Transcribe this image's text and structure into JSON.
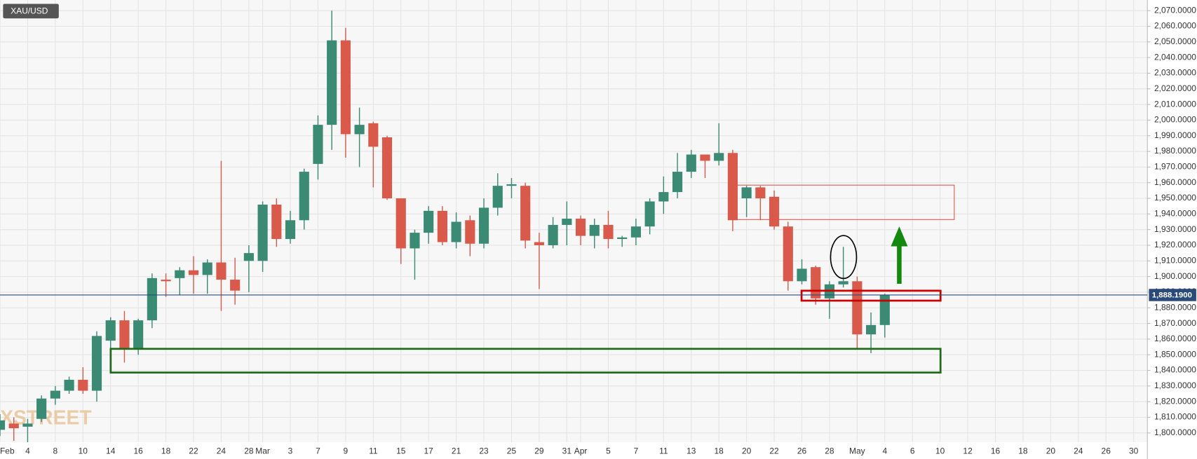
{
  "chart_data": {
    "type": "candlestick",
    "symbol": "XAU/USD",
    "watermark": "FXSTREET",
    "up_color": "#3a8a74",
    "down_color": "#d95a4b",
    "grid": true,
    "ylim": [
      1794.1,
      2076.8
    ],
    "yticks": [
      {
        "value": 1800,
        "label": "1,800.0000"
      },
      {
        "value": 1810,
        "label": "1,810.0000"
      },
      {
        "value": 1820,
        "label": "1,820.0000"
      },
      {
        "value": 1830,
        "label": "1,830.0000"
      },
      {
        "value": 1840,
        "label": "1,840.0000"
      },
      {
        "value": 1850,
        "label": "1,850.0000"
      },
      {
        "value": 1860,
        "label": "1,860.0000"
      },
      {
        "value": 1870,
        "label": "1,870.0000"
      },
      {
        "value": 1880,
        "label": "1,880.0000"
      },
      {
        "value": 1890,
        "label": "1,890.0000"
      },
      {
        "value": 1900,
        "label": "1,900.0000"
      },
      {
        "value": 1910,
        "label": "1,910.0000"
      },
      {
        "value": 1920,
        "label": "1,920.0000"
      },
      {
        "value": 1930,
        "label": "1,930.0000"
      },
      {
        "value": 1940,
        "label": "1,940.0000"
      },
      {
        "value": 1950,
        "label": "1,950.0000"
      },
      {
        "value": 1960,
        "label": "1,960.0000"
      },
      {
        "value": 1970,
        "label": "1,970.0000"
      },
      {
        "value": 1980,
        "label": "1,980.0000"
      },
      {
        "value": 1990,
        "label": "1,990.0000"
      },
      {
        "value": 2000,
        "label": "2,000.0000"
      },
      {
        "value": 2010,
        "label": "2,010.0000"
      },
      {
        "value": 2020,
        "label": "2,020.0000"
      },
      {
        "value": 2030,
        "label": "2,030.0000"
      },
      {
        "value": 2040,
        "label": "2,040.0000"
      },
      {
        "value": 2050,
        "label": "2,050.0000"
      },
      {
        "value": 2060,
        "label": "2,060.0000"
      },
      {
        "value": 2070,
        "label": "2,070.0000"
      }
    ],
    "last_price": {
      "value": 1888.19,
      "label": "1,888.1900"
    },
    "categories": [
      "Feb",
      null,
      "4",
      null,
      "8",
      null,
      "10",
      null,
      "14",
      null,
      "16",
      null,
      "18",
      null,
      "22",
      null,
      "24",
      null,
      "28",
      "Mar",
      null,
      "3",
      null,
      "7",
      null,
      "9",
      null,
      "11",
      null,
      "15",
      null,
      "17",
      null,
      "21",
      null,
      "23",
      null,
      "25",
      null,
      "29",
      null,
      "31",
      "Apr",
      null,
      "5",
      null,
      "7",
      null,
      "11",
      null,
      "13",
      null,
      "18",
      null,
      "20",
      null,
      "22",
      null,
      "26",
      null,
      "28",
      null,
      "May",
      null,
      "4",
      null,
      "6",
      null,
      "10",
      null,
      "12",
      null,
      "16",
      null,
      "18",
      null,
      "20",
      null,
      "24",
      null,
      "26",
      null,
      "30"
    ],
    "open": [
      1802,
      1806,
      1804,
      1809,
      1822,
      1827,
      1834,
      1827,
      1859,
      1872,
      1854,
      1872,
      1898,
      1899,
      1904,
      1901,
      1909,
      1898,
      1910,
      1910,
      1946,
      1924,
      1936,
      1972,
      1997,
      2051,
      1991,
      1998,
      1989,
      1950,
      1918,
      1928,
      1942,
      1922,
      1936,
      1921,
      1944,
      1958,
      1958,
      1922,
      1920,
      1933,
      1937,
      1926,
      1933,
      1924,
      1925,
      1932,
      1948,
      1954,
      1967,
      1978,
      1974,
      1979,
      1950,
      1957,
      1951,
      1932,
      1897,
      1906,
      1886,
      1895,
      1897,
      1863,
      1869,
      null,
      null,
      null,
      null,
      null,
      null,
      null,
      null,
      null,
      null,
      null,
      null,
      null,
      null,
      null,
      null,
      null,
      null
    ],
    "high": [
      1812,
      1810,
      1809,
      1824,
      1830,
      1836,
      1842,
      1865,
      1874,
      1878,
      1873,
      1902,
      1902,
      1906,
      1913,
      1911,
      1974,
      1912,
      1920,
      1948,
      1950,
      1942,
      1969,
      2003,
      2070,
      2059,
      2008,
      1999,
      1990,
      1950,
      1930,
      1945,
      1945,
      1941,
      1939,
      1950,
      1966,
      1963,
      1960,
      1928,
      1938,
      1948,
      1939,
      1937,
      1942,
      1926,
      1937,
      1950,
      1964,
      1979,
      1981,
      1978,
      1998,
      1981,
      1958,
      1958,
      1955,
      1935,
      1911,
      1907,
      1897,
      1919,
      1900,
      1877,
      1889,
      null,
      null,
      null,
      null,
      null,
      null,
      null,
      null,
      null,
      null,
      null,
      null,
      null,
      null,
      null,
      null,
      null,
      null
    ],
    "low": [
      1798,
      1795,
      1794,
      1807,
      1818,
      1825,
      1825,
      1820,
      1853,
      1845,
      1850,
      1867,
      1887,
      1888,
      1889,
      1889,
      1878,
      1882,
      1890,
      1903,
      1919,
      1921,
      1930,
      1962,
      1981,
      1976,
      1970,
      1957,
      1949,
      1908,
      1898,
      1921,
      1920,
      1918,
      1913,
      1918,
      1939,
      1950,
      1918,
      1892,
      1918,
      1920,
      1920,
      1918,
      1918,
      1919,
      1920,
      1927,
      1940,
      1950,
      1963,
      1963,
      1971,
      1929,
      1938,
      1936,
      1930,
      1891,
      1895,
      1882,
      1873,
      1893,
      1854,
      1851,
      1861,
      null,
      null,
      null,
      null,
      null,
      null,
      null,
      null,
      null,
      null,
      null,
      null,
      null,
      null,
      null,
      null,
      null,
      null
    ],
    "close": [
      1808,
      1803,
      1806,
      1822,
      1827,
      1834,
      1827,
      1862,
      1872,
      1854,
      1872,
      1899,
      1897,
      1904,
      1901,
      1909,
      1898,
      1891,
      1915,
      1946,
      1924,
      1936,
      1967,
      1997,
      2051,
      1991,
      1997,
      1983,
      1950,
      1918,
      1928,
      1942,
      1922,
      1935,
      1921,
      1944,
      1958,
      1959,
      1923,
      1920,
      1933,
      1937,
      1926,
      1933,
      1924,
      1925,
      1932,
      1948,
      1954,
      1967,
      1978,
      1974,
      1979,
      1936,
      1957,
      1950,
      1932,
      1897,
      1905,
      1886,
      1895,
      1897,
      1863,
      1869,
      1888,
      null,
      null,
      null,
      null,
      null,
      null,
      null,
      null,
      null,
      null,
      null,
      null,
      null,
      null,
      null,
      null,
      null,
      null
    ]
  }
}
